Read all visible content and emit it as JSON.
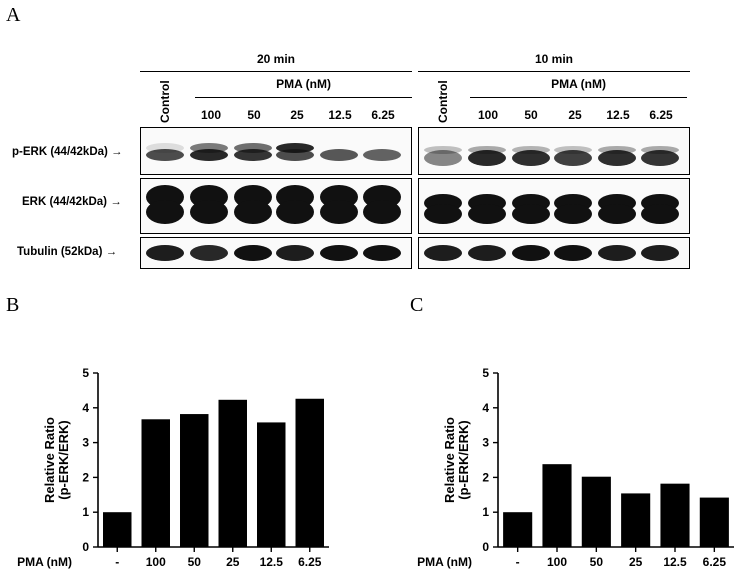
{
  "panel_a": {
    "letter": "A",
    "groups": [
      {
        "title": "20 min",
        "treatment_label": "PMA (nM)",
        "control_label": "Control",
        "doses": [
          "100",
          "50",
          "25",
          "12.5",
          "6.25"
        ]
      },
      {
        "title": "10 min",
        "treatment_label": "PMA (nM)",
        "control_label": "Control",
        "doses": [
          "100",
          "50",
          "25",
          "12.5",
          "6.25"
        ]
      }
    ],
    "rows": [
      {
        "label": "p-ERK (44/42kDa) →"
      },
      {
        "label": "ERK (44/42kDa) →"
      },
      {
        "label": "Tubulin (52kDa) →"
      }
    ]
  },
  "chart_data": [
    {
      "panel": "B",
      "type": "bar",
      "xlabel": "PMA (nM)",
      "ylabel": "Relative Ratio\n(p-ERK/ERK)",
      "categories": [
        "-",
        "100",
        "50",
        "25",
        "12.5",
        "6.25"
      ],
      "values": [
        1.0,
        3.67,
        3.82,
        4.23,
        3.58,
        4.26
      ],
      "ylim": [
        0,
        5
      ],
      "yticks": [
        0,
        1,
        2,
        3,
        4,
        5
      ],
      "bar_color": "#000000"
    },
    {
      "panel": "C",
      "type": "bar",
      "xlabel": "PMA (nM)",
      "ylabel": "Relative Ratio\n(p-ERK/ERK)",
      "categories": [
        "-",
        "100",
        "50",
        "25",
        "12.5",
        "6.25"
      ],
      "values": [
        1.0,
        2.38,
        2.02,
        1.54,
        1.82,
        1.42
      ],
      "ylim": [
        0,
        5
      ],
      "yticks": [
        0,
        1,
        2,
        3,
        4,
        5
      ],
      "bar_color": "#000000"
    }
  ]
}
